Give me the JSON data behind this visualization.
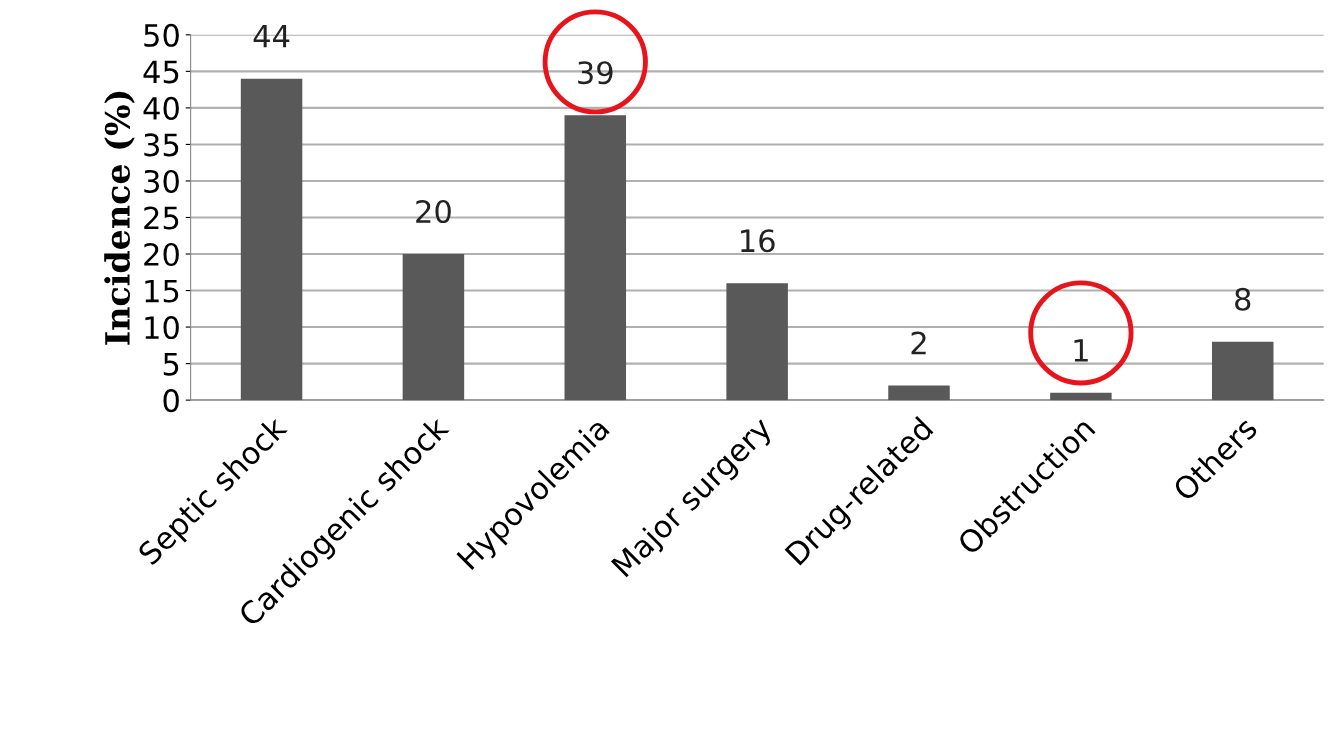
{
  "chart_data": {
    "type": "bar",
    "ylabel": "Incidence (%)",
    "categories": [
      "Septic shock",
      "Cardiogenic shock",
      "Hypovolemia",
      "Major surgery",
      "Drug-related",
      "Obstruction",
      "Others"
    ],
    "values": [
      44,
      20,
      39,
      16,
      2,
      1,
      8
    ],
    "color": "#595959",
    "ylim": [
      0,
      50
    ],
    "yticks": [
      0,
      5,
      10,
      15,
      20,
      25,
      30,
      35,
      40,
      45,
      50
    ],
    "grid": "y",
    "data_labels": true
  }
}
